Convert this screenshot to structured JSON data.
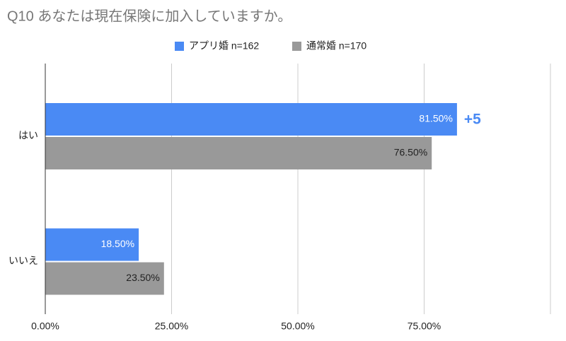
{
  "chart_data": {
    "type": "hbar",
    "title": "Q10 あなたは現在保険に加入していますか。",
    "categories": [
      "はい",
      "いいえ"
    ],
    "series": [
      {
        "name": "アプリ婚 n=162",
        "color": "#4a8af4",
        "values": [
          81.5,
          18.5
        ],
        "value_labels": [
          "81.50%",
          "18.50%"
        ]
      },
      {
        "name": "通常婚 n=170",
        "color": "#999999",
        "values": [
          76.5,
          23.5
        ],
        "value_labels": [
          "76.50%",
          "23.50%"
        ]
      }
    ],
    "xlim": [
      0,
      100
    ],
    "xticks": [
      {
        "value": 0,
        "label": "0.00%"
      },
      {
        "value": 25,
        "label": "25.00%"
      },
      {
        "value": 50,
        "label": "50.00%"
      },
      {
        "value": 75,
        "label": "75.00%"
      }
    ],
    "grid": true,
    "legend": "top",
    "annotation": {
      "text": "+5",
      "color": "#4a8af4"
    }
  }
}
